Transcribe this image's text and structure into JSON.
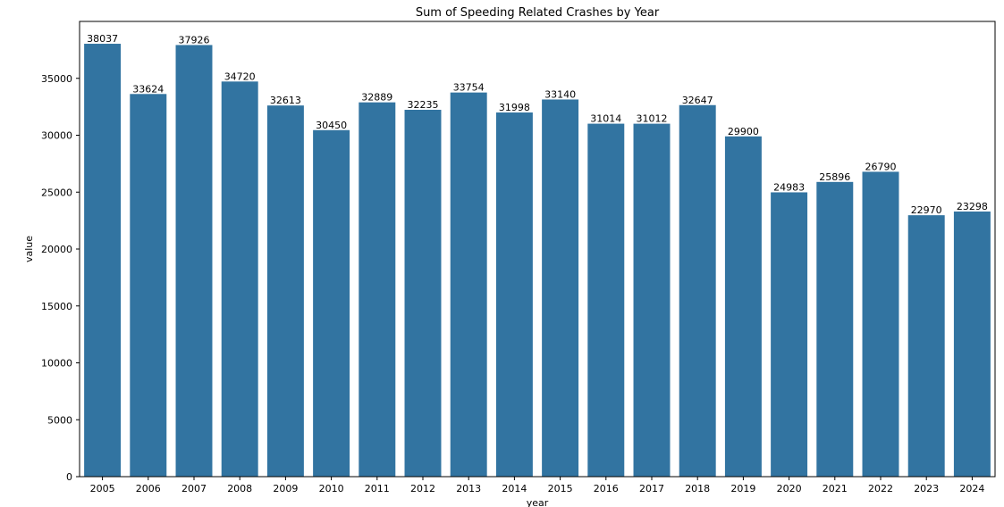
{
  "chart_data": {
    "type": "bar",
    "title": "Sum of Speeding Related Crashes by Year",
    "xlabel": "year",
    "ylabel": "value",
    "categories": [
      "2005",
      "2006",
      "2007",
      "2008",
      "2009",
      "2010",
      "2011",
      "2012",
      "2013",
      "2014",
      "2015",
      "2016",
      "2017",
      "2018",
      "2019",
      "2020",
      "2021",
      "2022",
      "2023",
      "2024"
    ],
    "values": [
      38037,
      33624,
      37926,
      34720,
      32613,
      30450,
      32889,
      32235,
      33754,
      31998,
      33140,
      31014,
      31012,
      32647,
      29900,
      24983,
      25896,
      26790,
      22970,
      23298
    ],
    "ylim": [
      0,
      40000
    ],
    "yticks": [
      0,
      5000,
      10000,
      15000,
      20000,
      25000,
      30000,
      35000
    ],
    "bar_color": "#3274a1",
    "grid": false,
    "legend": "none"
  }
}
